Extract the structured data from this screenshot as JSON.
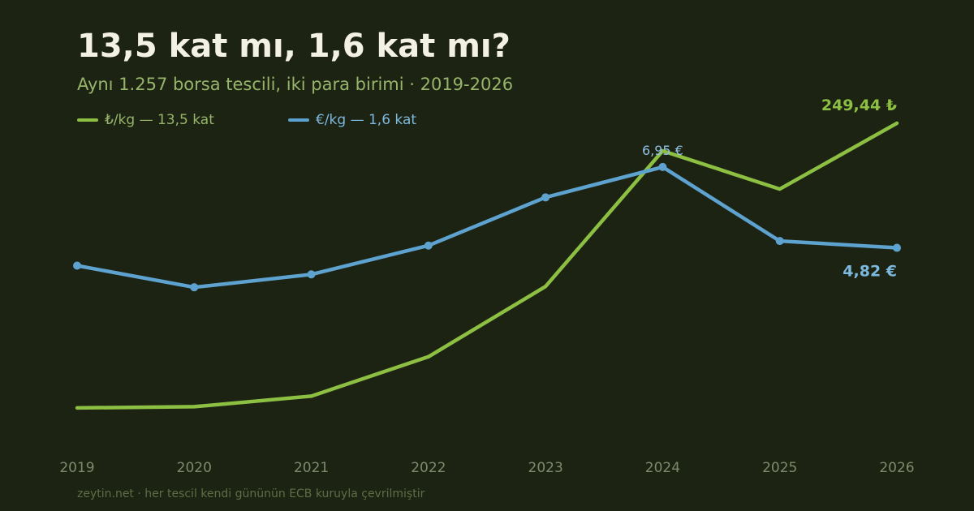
{
  "title": "13,5 kat mı, 1,6 kat mı?",
  "subtitle": "Aynı 1.257 borsa tescili, iki para birimi · 2019-2026",
  "footer": "zeytin.net · her tescil kendi gününün ECB kuruyla çevrilmiştir",
  "colors": {
    "background": "#1c2313",
    "try_series": "#8cbf42",
    "eur_series": "#5ea3d0",
    "title": "#f2f1e4",
    "subtitle": "#97b56a",
    "tick": "#7f8a6c"
  },
  "legend": [
    {
      "label": "₺/kg — 13,5 kat",
      "color": "#8cbf42",
      "text_color": "#97b56a"
    },
    {
      "label": "€/kg — 1,6 kat",
      "color": "#5ea3d0",
      "text_color": "#7db8de"
    }
  ],
  "chart_data": {
    "type": "line",
    "title": "13,5 kat mı, 1,6 kat mı?",
    "subtitle": "Aynı 1.257 borsa tescili, iki para birimi · 2019-2026",
    "x": [
      "2019",
      "2020",
      "2021",
      "2022",
      "2023",
      "2024",
      "2025",
      "2026"
    ],
    "grid": false,
    "legend_position": "top-left",
    "series": [
      {
        "name": "₺/kg — 13,5 kat",
        "unit": "₺/kg",
        "color": "#8cbf42",
        "values": [
          18.5,
          19.5,
          28,
          60,
          117,
          227,
          196,
          249.44
        ],
        "markers": false,
        "ylim": [
          0,
          277
        ]
      },
      {
        "name": "€/kg — 1,6 kat",
        "unit": "€/kg",
        "color": "#5ea3d0",
        "values": [
          4.35,
          3.78,
          4.12,
          4.88,
          6.15,
          6.95,
          5.0,
          4.82
        ],
        "markers": true,
        "ylim": [
          0,
          9.0
        ]
      }
    ],
    "annotations": [
      {
        "text": "6,95 €",
        "series": 1,
        "index": 5,
        "style": "peak"
      },
      {
        "text": "249,44 ₺",
        "series": 0,
        "index": 7,
        "style": "end"
      },
      {
        "text": "4,82 €",
        "series": 1,
        "index": 7,
        "style": "end-below"
      }
    ]
  }
}
